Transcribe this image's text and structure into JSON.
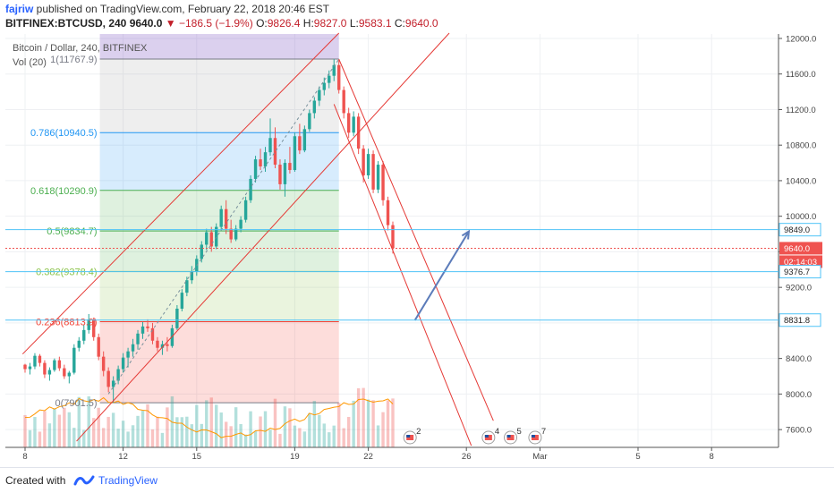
{
  "header": {
    "user": "fajriw",
    "published": " published on TradingView.com, February 22, 2018 20:46 EST",
    "symbol": "BITFINEX:BTCUSD, 240",
    "last": "9640.0",
    "change": "−186.5 (−1.9%)",
    "o_label": "O:",
    "o_val": "9826.4",
    "h_label": "H:",
    "h_val": "9827.0",
    "l_label": "L:",
    "l_val": "9583.1",
    "c_label": "C:",
    "c_val": "9640.0"
  },
  "footer": {
    "created": "Created with",
    "brand": "TradingView"
  },
  "chart_data": {
    "type": "candlestick",
    "title": "Bitcoin / Dollar, 240, BITFINEX",
    "indicator": "Vol (20)",
    "ylim": [
      7400,
      12050
    ],
    "y_ticks": [
      12000,
      11600,
      11200,
      10800,
      10400,
      10000,
      9600,
      9200,
      8800,
      8400,
      8000,
      7600
    ],
    "y_tick_labels": [
      "12000.0",
      "11600.0",
      "11200.0",
      "10800.0",
      "10400.0",
      "10000.0",
      "",
      "9200.0",
      "",
      "8400.0",
      "8000.0",
      "7600.0"
    ],
    "x_ticks": [
      {
        "label": "8",
        "day": 8
      },
      {
        "label": "12",
        "day": 12
      },
      {
        "label": "15",
        "day": 15
      },
      {
        "label": "19",
        "day": 19
      },
      {
        "label": "22",
        "day": 22
      },
      {
        "label": "26",
        "day": 26
      },
      {
        "label": "Mar",
        "day": 29
      },
      {
        "label": "5",
        "day": 33
      },
      {
        "label": "8",
        "day": 36
      }
    ],
    "fib_levels": [
      {
        "ratio": "1",
        "price": 11767.9,
        "label": "1(11767.9)",
        "color": "#787b86"
      },
      {
        "ratio": "0.786",
        "price": 10940.5,
        "label": "0.786(10940.5)",
        "color": "#2196f3"
      },
      {
        "ratio": "0.618",
        "price": 10290.9,
        "label": "0.618(10290.9)",
        "color": "#4caf50"
      },
      {
        "ratio": "0.5",
        "price": 9834.7,
        "label": "0.5(9834.7)",
        "color": "#4caf50"
      },
      {
        "ratio": "0.382",
        "price": 9378.4,
        "label": "0.382(9378.4)",
        "color": "#8bc34a"
      },
      {
        "ratio": "0.236",
        "price": 8813.9,
        "label": "0.236(8813.9)",
        "color": "#f44336"
      },
      {
        "ratio": "0",
        "price": 7901.5,
        "label": "0(7901.5)",
        "color": "#787b86"
      }
    ],
    "price_tags": [
      {
        "price": 9849.0,
        "label": "9849.0",
        "style": "line"
      },
      {
        "price": 9640.0,
        "label": "9640.0",
        "style": "last"
      },
      {
        "label": "02:14:03",
        "style": "timer"
      },
      {
        "price": 9376.7,
        "label": "9376.7",
        "style": "line"
      },
      {
        "price": 8831.8,
        "label": "8831.8",
        "style": "line"
      }
    ],
    "events": [
      {
        "day": 23.7,
        "label": "2"
      },
      {
        "day": 26.9,
        "label": "4"
      },
      {
        "day": 27.8,
        "label": "5"
      },
      {
        "day": 28.8,
        "label": "7"
      }
    ],
    "projection": {
      "from": {
        "day": 23.9,
        "price": 8830
      },
      "to": {
        "day": 26.1,
        "price": 9830
      }
    },
    "candles": [
      [
        8.0,
        8330,
        8340,
        8240,
        8280
      ],
      [
        8.2,
        8280,
        8350,
        8220,
        8310
      ],
      [
        8.4,
        8310,
        8460,
        8280,
        8430
      ],
      [
        8.6,
        8430,
        8450,
        8310,
        8350
      ],
      [
        8.8,
        8350,
        8380,
        8180,
        8220
      ],
      [
        9.0,
        8220,
        8300,
        8150,
        8270
      ],
      [
        9.2,
        8270,
        8400,
        8250,
        8380
      ],
      [
        9.4,
        8380,
        8420,
        8260,
        8290
      ],
      [
        9.6,
        8290,
        8330,
        8170,
        8200
      ],
      [
        9.8,
        8200,
        8260,
        8120,
        8240
      ],
      [
        10.0,
        8240,
        8560,
        8220,
        8520
      ],
      [
        10.2,
        8520,
        8640,
        8480,
        8600
      ],
      [
        10.4,
        8600,
        8780,
        8560,
        8720
      ],
      [
        10.6,
        8720,
        8900,
        8680,
        8840
      ],
      [
        10.8,
        8840,
        8860,
        8600,
        8640
      ],
      [
        11.0,
        8640,
        8680,
        8380,
        8420
      ],
      [
        11.2,
        8420,
        8480,
        8200,
        8260
      ],
      [
        11.4,
        8260,
        8300,
        8020,
        8080
      ],
      [
        11.6,
        8080,
        8200,
        7901,
        8150
      ],
      [
        11.8,
        8150,
        8320,
        8110,
        8280
      ],
      [
        12.0,
        8280,
        8460,
        8240,
        8410
      ],
      [
        12.2,
        8410,
        8520,
        8300,
        8480
      ],
      [
        12.4,
        8480,
        8620,
        8420,
        8560
      ],
      [
        12.6,
        8560,
        8720,
        8500,
        8680
      ],
      [
        12.8,
        8680,
        8810,
        8620,
        8760
      ],
      [
        13.0,
        8760,
        8840,
        8700,
        8740
      ],
      [
        13.2,
        8740,
        8800,
        8560,
        8600
      ],
      [
        13.4,
        8600,
        8640,
        8480,
        8520
      ],
      [
        13.6,
        8520,
        8600,
        8440,
        8560
      ],
      [
        13.8,
        8560,
        8640,
        8480,
        8540
      ],
      [
        14.0,
        8540,
        8780,
        8520,
        8740
      ],
      [
        14.2,
        8740,
        9000,
        8720,
        8960
      ],
      [
        14.4,
        8960,
        9180,
        8930,
        9140
      ],
      [
        14.6,
        9140,
        9320,
        9100,
        9280
      ],
      [
        14.8,
        9280,
        9440,
        9240,
        9380
      ],
      [
        15.0,
        9380,
        9560,
        9330,
        9520
      ],
      [
        15.2,
        9520,
        9720,
        9480,
        9680
      ],
      [
        15.4,
        9680,
        9860,
        9620,
        9820
      ],
      [
        15.6,
        9820,
        9880,
        9600,
        9660
      ],
      [
        15.8,
        9660,
        9920,
        9630,
        9880
      ],
      [
        16.0,
        9880,
        10120,
        9840,
        10080
      ],
      [
        16.2,
        10080,
        10180,
        9800,
        9860
      ],
      [
        16.4,
        9860,
        9960,
        9700,
        9740
      ],
      [
        16.6,
        9740,
        9900,
        9720,
        9860
      ],
      [
        16.8,
        9860,
        10000,
        9820,
        9960
      ],
      [
        17.0,
        9960,
        10220,
        9930,
        10180
      ],
      [
        17.2,
        10180,
        10460,
        10150,
        10420
      ],
      [
        17.4,
        10420,
        10680,
        10380,
        10640
      ],
      [
        17.6,
        10640,
        10760,
        10520,
        10560
      ],
      [
        17.8,
        10560,
        10780,
        10500,
        10720
      ],
      [
        18.0,
        10720,
        11100,
        10680,
        10880
      ],
      [
        18.2,
        10880,
        11000,
        10540,
        10580
      ],
      [
        18.4,
        10580,
        10640,
        10300,
        10360
      ],
      [
        18.6,
        10360,
        10640,
        10220,
        10600
      ],
      [
        18.8,
        10600,
        10780,
        10480,
        10520
      ],
      [
        19.0,
        10520,
        10940,
        10500,
        10900
      ],
      [
        19.2,
        10900,
        11040,
        10700,
        10740
      ],
      [
        19.4,
        10740,
        11020,
        10720,
        10980
      ],
      [
        19.6,
        10980,
        11200,
        10950,
        11160
      ],
      [
        19.8,
        11160,
        11340,
        11100,
        11300
      ],
      [
        20.0,
        11300,
        11460,
        11240,
        11420
      ],
      [
        20.2,
        11420,
        11560,
        11360,
        11500
      ],
      [
        20.4,
        11500,
        11640,
        11440,
        11580
      ],
      [
        20.6,
        11580,
        11767,
        11520,
        11700
      ],
      [
        20.8,
        11700,
        11760,
        11380,
        11420
      ],
      [
        21.0,
        11420,
        11460,
        11100,
        11160
      ],
      [
        21.2,
        11160,
        11220,
        10880,
        10940
      ],
      [
        21.4,
        10940,
        11180,
        10900,
        11120
      ],
      [
        21.6,
        11120,
        11160,
        10700,
        10760
      ],
      [
        21.8,
        10760,
        10800,
        10380,
        10460
      ],
      [
        22.0,
        10460,
        10760,
        10420,
        10700
      ],
      [
        22.2,
        10700,
        10740,
        10260,
        10300
      ],
      [
        22.4,
        10300,
        10620,
        10260,
        10580
      ],
      [
        22.6,
        10580,
        10620,
        10120,
        10180
      ],
      [
        22.8,
        10180,
        10220,
        9840,
        9900
      ],
      [
        23.0,
        9900,
        9940,
        9580,
        9640
      ]
    ]
  }
}
